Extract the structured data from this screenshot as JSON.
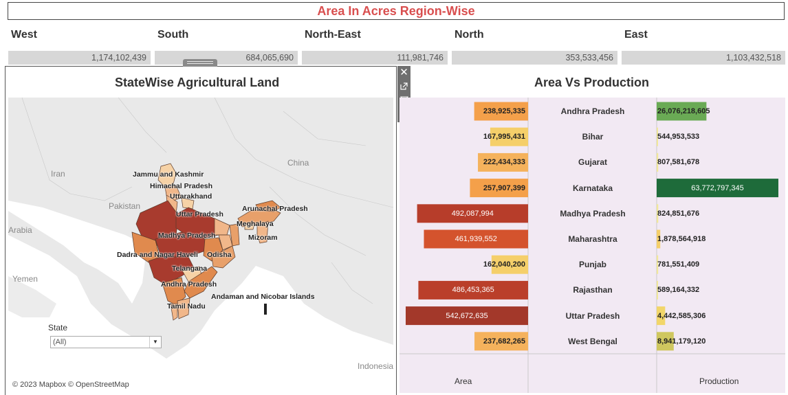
{
  "header": {
    "title": "Area In Acres Region-Wise"
  },
  "regions": [
    {
      "name": "West",
      "value": "1,174,102,439"
    },
    {
      "name": "South",
      "value": "684,065,690"
    },
    {
      "name": "North-East",
      "value": "111,981,746"
    },
    {
      "name": "North",
      "value": "353,533,456"
    },
    {
      "name": "East",
      "value": "1,103,432,518"
    }
  ],
  "map_panel": {
    "title": "StateWise Agricultural Land",
    "attribution": "© 2023 Mapbox © OpenStreetMap",
    "geo_labels": [
      "Iran",
      "China",
      "Pakistan",
      "Arabia",
      "Yemen",
      "Indonesia"
    ],
    "state_labels": [
      "Jammu and Kashmir",
      "Himachal Pradesh",
      "Uttarakhand",
      "Arunachal Pradesh",
      "Uttar Pradesh",
      "Meghalaya",
      "Madhya Pradesh",
      "Mizoram",
      "Dadra and Nagar Haveli",
      "Odisha",
      "Telangana",
      "Andhra Pradesh",
      "Andaman and Nicobar Islands",
      "Tamil Nadu"
    ],
    "filter": {
      "label": "State",
      "value": "(All)"
    },
    "toolbar_icons": [
      "close-icon",
      "popout-icon",
      "filter-icon",
      "dropdown-caret-icon"
    ]
  },
  "chart_panel": {
    "title": "Area Vs Production",
    "area_axis": "Area",
    "production_axis": "Production",
    "area_labels": [
      "238,925,335",
      "167,995,431",
      "222,434,333",
      "257,907,399",
      "492,087,994",
      "461,939,552",
      "162,040,200",
      "486,453,365",
      "542,672,635",
      "237,682,265"
    ],
    "production_labels": [
      "26,076,218,605",
      "544,953,533",
      "807,581,678",
      "63,772,797,345",
      "824,851,676",
      "1,878,564,918",
      "781,551,409",
      "589,164,332",
      "4,442,585,306",
      "8,941,179,120"
    ]
  },
  "chart_data": {
    "type": "bar",
    "title": "Area Vs Production",
    "categories": [
      "Andhra Pradesh",
      "Bihar",
      "Gujarat",
      "Karnataka",
      "Madhya Pradesh",
      "Maharashtra",
      "Punjab",
      "Rajasthan",
      "Uttar Pradesh",
      "West Bengal"
    ],
    "series": [
      {
        "name": "Area",
        "values": [
          238925335,
          167995431,
          222434333,
          257907399,
          492087994,
          461939552,
          162040200,
          486453365,
          542672635,
          237682265
        ]
      },
      {
        "name": "Production",
        "values": [
          26076218605,
          544953533,
          807581678,
          63772797345,
          824851676,
          1878564918,
          781551409,
          589164332,
          4442585306,
          8941179120
        ]
      }
    ],
    "area_colors": [
      "#f4a04a",
      "#f5cf6a",
      "#f5b25c",
      "#f4a04a",
      "#b73d2a",
      "#d4532d",
      "#f5cf6a",
      "#ba3f2a",
      "#a3382a",
      "#f5b25c"
    ],
    "production_colors": [
      "#6aaa55",
      "#f1e79a",
      "#f1e79a",
      "#1e6b3a",
      "#f1e79a",
      "#f5cf6a",
      "#f1e79a",
      "#f1e79a",
      "#f2d66a",
      "#cfc75f"
    ]
  },
  "colors": {
    "title": "#d94f4f",
    "panel_bg": "#f2e9f3",
    "region_bar": "#d7d7d7"
  }
}
